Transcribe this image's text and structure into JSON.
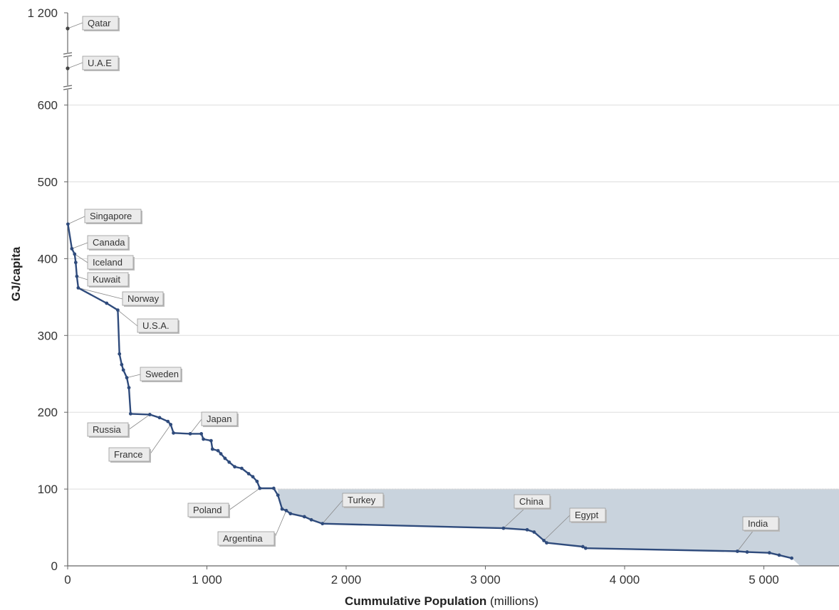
{
  "chart_data": {
    "type": "line",
    "title": "",
    "xlabel": "Cummulative Population",
    "xlabel_unit": "(millions)",
    "ylabel": "GJ/capita",
    "xlim": [
      0,
      5550
    ],
    "ylim": [
      0,
      600
    ],
    "y_axis_break": true,
    "x_ticks": [
      {
        "value": 0,
        "label": "0"
      },
      {
        "value": 1000,
        "label": "1 000"
      },
      {
        "value": 2000,
        "label": "2 000"
      },
      {
        "value": 3000,
        "label": "3 000"
      },
      {
        "value": 4000,
        "label": "4 000"
      },
      {
        "value": 5000,
        "label": "5 000"
      }
    ],
    "y_ticks": [
      {
        "value": 0,
        "label": "0"
      },
      {
        "value": 100,
        "label": "100"
      },
      {
        "value": 200,
        "label": "200"
      },
      {
        "value": 300,
        "label": "300"
      },
      {
        "value": 400,
        "label": "400"
      },
      {
        "value": 500,
        "label": "500"
      },
      {
        "value": 600,
        "label": "600"
      }
    ],
    "broken_axis_ticks": [
      {
        "label": "1 200"
      }
    ],
    "grid": "horizontal",
    "highlight_region": {
      "y_below": 100,
      "color": "#c9d3dd"
    },
    "line_color": "#2f4b7c",
    "outliers": [
      {
        "label": "Qatar",
        "value": 1200
      },
      {
        "label": "U.A.E",
        "value": null
      }
    ],
    "series": [
      {
        "points": [
          [
            2,
            445
          ],
          [
            30,
            413
          ],
          [
            50,
            406
          ],
          [
            58,
            395
          ],
          [
            66,
            377
          ],
          [
            76,
            362
          ],
          [
            280,
            342
          ],
          [
            360,
            333
          ],
          [
            372,
            276
          ],
          [
            388,
            262
          ],
          [
            400,
            255
          ],
          [
            425,
            245
          ],
          [
            440,
            232
          ],
          [
            452,
            198
          ],
          [
            590,
            197
          ],
          [
            660,
            193
          ],
          [
            720,
            188
          ],
          [
            740,
            184
          ],
          [
            760,
            173
          ],
          [
            880,
            172
          ],
          [
            960,
            172
          ],
          [
            975,
            165
          ],
          [
            1030,
            163
          ],
          [
            1040,
            152
          ],
          [
            1080,
            150
          ],
          [
            1100,
            146
          ],
          [
            1130,
            140
          ],
          [
            1160,
            135
          ],
          [
            1200,
            129
          ],
          [
            1250,
            127
          ],
          [
            1300,
            120
          ],
          [
            1330,
            116
          ],
          [
            1360,
            110
          ],
          [
            1380,
            101
          ],
          [
            1480,
            101
          ],
          [
            1510,
            92
          ],
          [
            1540,
            74
          ],
          [
            1570,
            72
          ],
          [
            1600,
            68
          ],
          [
            1700,
            64
          ],
          [
            1750,
            60
          ],
          [
            1830,
            55
          ],
          [
            3130,
            49
          ],
          [
            3300,
            47
          ],
          [
            3350,
            44
          ],
          [
            3420,
            33
          ],
          [
            3440,
            30
          ],
          [
            3700,
            25
          ],
          [
            3720,
            23
          ],
          [
            4810,
            19
          ],
          [
            4880,
            18
          ],
          [
            5040,
            17
          ],
          [
            5110,
            14
          ],
          [
            5200,
            10
          ]
        ]
      }
    ],
    "annotations": [
      {
        "label": "Singapore",
        "x": 2,
        "y": 445
      },
      {
        "label": "Canada",
        "x": 30,
        "y": 413
      },
      {
        "label": "Iceland",
        "x": 50,
        "y": 406
      },
      {
        "label": "Kuwait",
        "x": 66,
        "y": 377
      },
      {
        "label": "Norway",
        "x": 76,
        "y": 362
      },
      {
        "label": "U.S.A.",
        "x": 360,
        "y": 333
      },
      {
        "label": "Sweden",
        "x": 425,
        "y": 245
      },
      {
        "label": "Russia",
        "x": 590,
        "y": 197
      },
      {
        "label": "France",
        "x": 740,
        "y": 184
      },
      {
        "label": "Japan",
        "x": 880,
        "y": 172
      },
      {
        "label": "Poland",
        "x": 1380,
        "y": 101
      },
      {
        "label": "Argentina",
        "x": 1570,
        "y": 72
      },
      {
        "label": "Turkey",
        "x": 1830,
        "y": 55
      },
      {
        "label": "China",
        "x": 3130,
        "y": 49
      },
      {
        "label": "Egypt",
        "x": 3420,
        "y": 33
      },
      {
        "label": "India",
        "x": 4810,
        "y": 19
      }
    ]
  }
}
